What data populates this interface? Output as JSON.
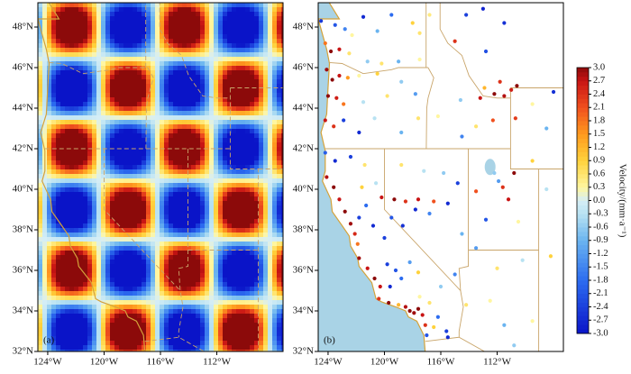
{
  "panels": [
    {
      "label": "(a)"
    },
    {
      "label": "(b)"
    }
  ],
  "map": {
    "lonlim": [
      -124.7,
      -107.3
    ],
    "latlim": [
      32,
      49.2
    ],
    "lon_ticks": [
      {
        "value": -124,
        "label": "124°W"
      },
      {
        "value": -120,
        "label": "120°W"
      },
      {
        "value": -116,
        "label": "116°W"
      },
      {
        "value": -112,
        "label": "112°W"
      }
    ],
    "lat_ticks": [
      {
        "value": 32,
        "label": "32°N"
      },
      {
        "value": 34,
        "label": "34°N"
      },
      {
        "value": 36,
        "label": "36°N"
      },
      {
        "value": 38,
        "label": "38°N"
      },
      {
        "value": 40,
        "label": "40°N"
      },
      {
        "value": 42,
        "label": "42°N"
      },
      {
        "value": 44,
        "label": "44°N"
      },
      {
        "value": 46,
        "label": "46°N"
      },
      {
        "value": 48,
        "label": "48°N"
      }
    ]
  },
  "colorbar": {
    "label": "Velocity/(mm·a⁻¹)",
    "lim": [
      -3,
      3
    ],
    "ticks": [
      {
        "value": 3,
        "label": "3.0"
      },
      {
        "value": 2.7,
        "label": "2.7"
      },
      {
        "value": 2.4,
        "label": "2.4"
      },
      {
        "value": 2.1,
        "label": "2.1"
      },
      {
        "value": 1.8,
        "label": "1.8"
      },
      {
        "value": 1.5,
        "label": "1.5"
      },
      {
        "value": 1.2,
        "label": "1.2"
      },
      {
        "value": 0.9,
        "label": "0.9"
      },
      {
        "value": 0.6,
        "label": "0.6"
      },
      {
        "value": 0.3,
        "label": "0.3"
      },
      {
        "value": 0,
        "label": "0.0"
      },
      {
        "value": -0.3,
        "label": "-0.3"
      },
      {
        "value": -0.6,
        "label": "-0.6"
      },
      {
        "value": -0.9,
        "label": "-0.9"
      },
      {
        "value": -1.2,
        "label": "-1.2"
      },
      {
        "value": -1.5,
        "label": "-1.5"
      },
      {
        "value": -1.8,
        "label": "-1.8"
      },
      {
        "value": -2.1,
        "label": "-2.1"
      },
      {
        "value": -2.4,
        "label": "-2.4"
      },
      {
        "value": -2.7,
        "label": "-2.7"
      },
      {
        "value": -3,
        "label": "-3.0"
      }
    ]
  },
  "stations": [
    {
      "lon": -124.5,
      "lat": 48.3,
      "v": -2.5
    },
    {
      "lon": -123.5,
      "lat": 48.1,
      "v": -2.1
    },
    {
      "lon": -122.8,
      "lat": 47.9,
      "v": -1.5
    },
    {
      "lon": -122.3,
      "lat": 47.6,
      "v": 0.3
    },
    {
      "lon": -121.5,
      "lat": 48.5,
      "v": -2.7
    },
    {
      "lon": -120.5,
      "lat": 47.8,
      "v": -0.9
    },
    {
      "lon": -119.5,
      "lat": 48.6,
      "v": -1.8
    },
    {
      "lon": -118,
      "lat": 48.2,
      "v": 0.9
    },
    {
      "lon": -117.5,
      "lat": 47.7,
      "v": 0.6
    },
    {
      "lon": -116.8,
      "lat": 48.6,
      "v": 0.5
    },
    {
      "lon": -114.2,
      "lat": 48.6,
      "v": -2.4
    },
    {
      "lon": -113,
      "lat": 48.9,
      "v": -2.8
    },
    {
      "lon": -111.5,
      "lat": 48.2,
      "v": -2.6
    },
    {
      "lon": -124.2,
      "lat": 47.2,
      "v": 1.8
    },
    {
      "lon": -123.8,
      "lat": 46.8,
      "v": 3
    },
    {
      "lon": -123.2,
      "lat": 46.9,
      "v": 2.7
    },
    {
      "lon": -122.5,
      "lat": 46.7,
      "v": 0.6
    },
    {
      "lon": -121.2,
      "lat": 46.3,
      "v": -0.6
    },
    {
      "lon": -120.2,
      "lat": 46.2,
      "v": 0.6
    },
    {
      "lon": -119,
      "lat": 46.3,
      "v": -0.9
    },
    {
      "lon": -117.5,
      "lat": 46.4,
      "v": 0.3
    },
    {
      "lon": -115,
      "lat": 47.3,
      "v": 2.4
    },
    {
      "lon": -112.8,
      "lat": 46.8,
      "v": -2.2
    },
    {
      "lon": -124.1,
      "lat": 45.9,
      "v": 2.9
    },
    {
      "lon": -123.7,
      "lat": 45.4,
      "v": 3
    },
    {
      "lon": -123.2,
      "lat": 45.6,
      "v": 2.7
    },
    {
      "lon": -122.6,
      "lat": 45.5,
      "v": 1.5
    },
    {
      "lon": -121.8,
      "lat": 45.6,
      "v": 0.3
    },
    {
      "lon": -120.5,
      "lat": 45.7,
      "v": 0.9
    },
    {
      "lon": -118.8,
      "lat": 45.3,
      "v": -0.6
    },
    {
      "lon": -124,
      "lat": 44.6,
      "v": 3
    },
    {
      "lon": -123.4,
      "lat": 44.5,
      "v": 2.6
    },
    {
      "lon": -122.9,
      "lat": 44.2,
      "v": 1.8
    },
    {
      "lon": -121.5,
      "lat": 44.3,
      "v": -0.3
    },
    {
      "lon": -119.8,
      "lat": 44.6,
      "v": 0.6
    },
    {
      "lon": -117.8,
      "lat": 44.7,
      "v": -1.2
    },
    {
      "lon": -124.2,
      "lat": 43.4,
      "v": 2.7
    },
    {
      "lon": -123.6,
      "lat": 43.1,
      "v": 2.4
    },
    {
      "lon": -122.9,
      "lat": 43.4,
      "v": -2.4
    },
    {
      "lon": -121.8,
      "lat": 42.8,
      "v": -2.7
    },
    {
      "lon": -120.7,
      "lat": 43.5,
      "v": -0.3
    },
    {
      "lon": -118.8,
      "lat": 42.8,
      "v": -0.9
    },
    {
      "lon": -117.6,
      "lat": 43.5,
      "v": 0.6
    },
    {
      "lon": -116.2,
      "lat": 43.6,
      "v": 0.3
    },
    {
      "lon": -114.6,
      "lat": 44.4,
      "v": -0.6
    },
    {
      "lon": -113.2,
      "lat": 44.5,
      "v": 2.7
    },
    {
      "lon": -112.2,
      "lat": 44.7,
      "v": 3
    },
    {
      "lon": -111.5,
      "lat": 44.6,
      "v": 2.8
    },
    {
      "lon": -111,
      "lat": 44.9,
      "v": 2.6
    },
    {
      "lon": -110.6,
      "lat": 45.1,
      "v": 3
    },
    {
      "lon": -111.8,
      "lat": 45.3,
      "v": 2.4
    },
    {
      "lon": -112.9,
      "lat": 45,
      "v": 1.2
    },
    {
      "lon": -114.5,
      "lat": 42.6,
      "v": -1.5
    },
    {
      "lon": -113.5,
      "lat": 43.1,
      "v": 0.6
    },
    {
      "lon": -112.3,
      "lat": 43.4,
      "v": 2.1
    },
    {
      "lon": -110.7,
      "lat": 43.5,
      "v": 2.3
    },
    {
      "lon": -109.5,
      "lat": 44.2,
      "v": 0.3
    },
    {
      "lon": -108,
      "lat": 44.8,
      "v": -2.6
    },
    {
      "lon": -108.5,
      "lat": 43,
      "v": -0.9
    },
    {
      "lon": -124.2,
      "lat": 41.8,
      "v": -2
    },
    {
      "lon": -123.5,
      "lat": 41.4,
      "v": -2.7
    },
    {
      "lon": -122.4,
      "lat": 41.6,
      "v": -2.4
    },
    {
      "lon": -121.4,
      "lat": 41.2,
      "v": 0.6
    },
    {
      "lon": -124.1,
      "lat": 40.6,
      "v": 2.8
    },
    {
      "lon": -123.6,
      "lat": 40.1,
      "v": 3
    },
    {
      "lon": -123.2,
      "lat": 39.5,
      "v": 2.7
    },
    {
      "lon": -122.8,
      "lat": 38.9,
      "v": 3
    },
    {
      "lon": -122.4,
      "lat": 38.3,
      "v": 2.9
    },
    {
      "lon": -122.1,
      "lat": 37.8,
      "v": 2.5
    },
    {
      "lon": -121.9,
      "lat": 37.3,
      "v": 1.8
    },
    {
      "lon": -121.8,
      "lat": 38.6,
      "v": -2.4
    },
    {
      "lon": -121.3,
      "lat": 39.2,
      "v": -1.8
    },
    {
      "lon": -121.6,
      "lat": 40.1,
      "v": 0.9
    },
    {
      "lon": -120.6,
      "lat": 40.3,
      "v": -0.3
    },
    {
      "lon": -120.2,
      "lat": 39.6,
      "v": 2.7
    },
    {
      "lon": -119.3,
      "lat": 39.5,
      "v": 3
    },
    {
      "lon": -118.5,
      "lat": 39.4,
      "v": 2.4
    },
    {
      "lon": -117.6,
      "lat": 39.5,
      "v": 2.7
    },
    {
      "lon": -116.5,
      "lat": 39.4,
      "v": 2.1
    },
    {
      "lon": -120.8,
      "lat": 38.2,
      "v": -2.7
    },
    {
      "lon": -120,
      "lat": 37.6,
      "v": -2.4
    },
    {
      "lon": -119.5,
      "lat": 38.6,
      "v": -2.1
    },
    {
      "lon": -118.7,
      "lat": 38.2,
      "v": -2.6
    },
    {
      "lon": -117.8,
      "lat": 39,
      "v": -2.7
    },
    {
      "lon": -116.8,
      "lat": 38.8,
      "v": -1.5
    },
    {
      "lon": -115.5,
      "lat": 39.3,
      "v": -2.7
    },
    {
      "lon": -114.8,
      "lat": 40.3,
      "v": -2.4
    },
    {
      "lon": -115.8,
      "lat": 40.8,
      "v": -0.6
    },
    {
      "lon": -117.2,
      "lat": 40.9,
      "v": -0.3
    },
    {
      "lon": -118.8,
      "lat": 41.2,
      "v": 0.6
    },
    {
      "lon": -113.5,
      "lat": 39.9,
      "v": 2.1
    },
    {
      "lon": -112.2,
      "lat": 40.8,
      "v": -0.6
    },
    {
      "lon": -111.9,
      "lat": 40.4,
      "v": -1.2
    },
    {
      "lon": -111.6,
      "lat": 40.1,
      "v": 2.4
    },
    {
      "lon": -111.2,
      "lat": 39.5,
      "v": 2.7
    },
    {
      "lon": -110.8,
      "lat": 40.8,
      "v": 3
    },
    {
      "lon": -109.5,
      "lat": 41.4,
      "v": 0.9
    },
    {
      "lon": -108.5,
      "lat": 40,
      "v": -0.3
    },
    {
      "lon": -110.5,
      "lat": 38.4,
      "v": 0.3
    },
    {
      "lon": -112.8,
      "lat": 38.5,
      "v": -2.1
    },
    {
      "lon": -121.8,
      "lat": 36.6,
      "v": 2.9
    },
    {
      "lon": -121.2,
      "lat": 36.1,
      "v": 2.7
    },
    {
      "lon": -120.7,
      "lat": 35.6,
      "v": 3
    },
    {
      "lon": -120.3,
      "lat": 35.2,
      "v": 2.7
    },
    {
      "lon": -119.8,
      "lat": 36.3,
      "v": -2.4
    },
    {
      "lon": -119.2,
      "lat": 36,
      "v": -2.1
    },
    {
      "lon": -119.6,
      "lat": 35.2,
      "v": -2.7
    },
    {
      "lon": -118.8,
      "lat": 35.6,
      "v": -1.8
    },
    {
      "lon": -118.2,
      "lat": 36.4,
      "v": -1.2
    },
    {
      "lon": -117.6,
      "lat": 35.9,
      "v": 0.9
    },
    {
      "lon": -120.4,
      "lat": 34.6,
      "v": 2.4
    },
    {
      "lon": -119.7,
      "lat": 34.4,
      "v": 3
    },
    {
      "lon": -119,
      "lat": 34.3,
      "v": 1.2
    },
    {
      "lon": -118.5,
      "lat": 34.2,
      "v": 2.8
    },
    {
      "lon": -118.2,
      "lat": 34,
      "v": 3
    },
    {
      "lon": -117.9,
      "lat": 33.9,
      "v": 2.9
    },
    {
      "lon": -117.6,
      "lat": 34.1,
      "v": 3
    },
    {
      "lon": -117.3,
      "lat": 33.8,
      "v": 2.7
    },
    {
      "lon": -117.1,
      "lat": 33.3,
      "v": 2.4
    },
    {
      "lon": -117,
      "lat": 32.8,
      "v": -2.1
    },
    {
      "lon": -116.5,
      "lat": 33.2,
      "v": 0.9
    },
    {
      "lon": -116.2,
      "lat": 33.7,
      "v": -1.8
    },
    {
      "lon": -115.6,
      "lat": 33,
      "v": -2.4
    },
    {
      "lon": -115.5,
      "lat": 32.7,
      "v": -2.7
    },
    {
      "lon": -116.8,
      "lat": 34.4,
      "v": 0.6
    },
    {
      "lon": -117.5,
      "lat": 34.7,
      "v": 0.3
    },
    {
      "lon": -116,
      "lat": 35.2,
      "v": -0.6
    },
    {
      "lon": -115,
      "lat": 35.8,
      "v": -1.5
    },
    {
      "lon": -114.2,
      "lat": 34.3,
      "v": 0.6
    },
    {
      "lon": -112.5,
      "lat": 34.5,
      "v": 0.3
    },
    {
      "lon": -111.5,
      "lat": 33.3,
      "v": -0.9
    },
    {
      "lon": -110.8,
      "lat": 32.3,
      "v": -0.6
    },
    {
      "lon": -109.5,
      "lat": 33.5,
      "v": 0.3
    },
    {
      "lon": -112,
      "lat": 36.1,
      "v": 0.6
    },
    {
      "lon": -110.2,
      "lat": 36.5,
      "v": -0.3
    },
    {
      "lon": -108.2,
      "lat": 36.7,
      "v": 0.9
    },
    {
      "lon": -113.5,
      "lat": 37.1,
      "v": -1.2
    },
    {
      "lon": -114.5,
      "lat": 37.8,
      "v": -0.9
    }
  ]
}
